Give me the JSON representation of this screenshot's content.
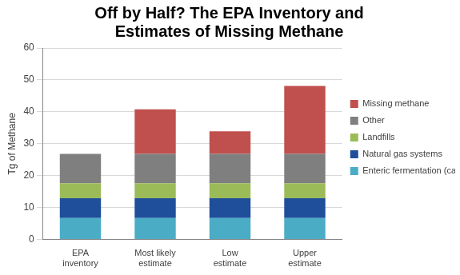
{
  "chart_data": {
    "type": "bar",
    "title": [
      "Off by Half? The EPA Inventory and",
      "Estimates of Missing Methane"
    ],
    "y_label": "Tg of Methane",
    "categories": [
      "EPA inventory",
      "Most likely estimate",
      "Low estimate",
      "Upper estimate"
    ],
    "series": [
      {
        "name": "Enteric fermentation (cattle related)",
        "color": "#4bacc6",
        "values": [
          6.7,
          6.7,
          6.7,
          6.7
        ]
      },
      {
        "name": "Natural gas systems",
        "color": "#1f4e9a",
        "values": [
          6.2,
          6.2,
          6.2,
          6.2
        ]
      },
      {
        "name": "Landfills",
        "color": "#9bbb59",
        "values": [
          4.7,
          4.7,
          4.7,
          4.7
        ]
      },
      {
        "name": "Other",
        "color": "#7f7f7f",
        "values": [
          9.2,
          9.2,
          9.2,
          9.2
        ]
      },
      {
        "name": "Missing methane",
        "color": "#c0504d",
        "values": [
          0,
          14,
          7.1,
          21.3
        ]
      }
    ],
    "ylim": [
      0,
      60
    ],
    "yticks": [
      0,
      10,
      20,
      30,
      40,
      50,
      60
    ],
    "stacked": true,
    "grid": true,
    "legend": "right"
  }
}
